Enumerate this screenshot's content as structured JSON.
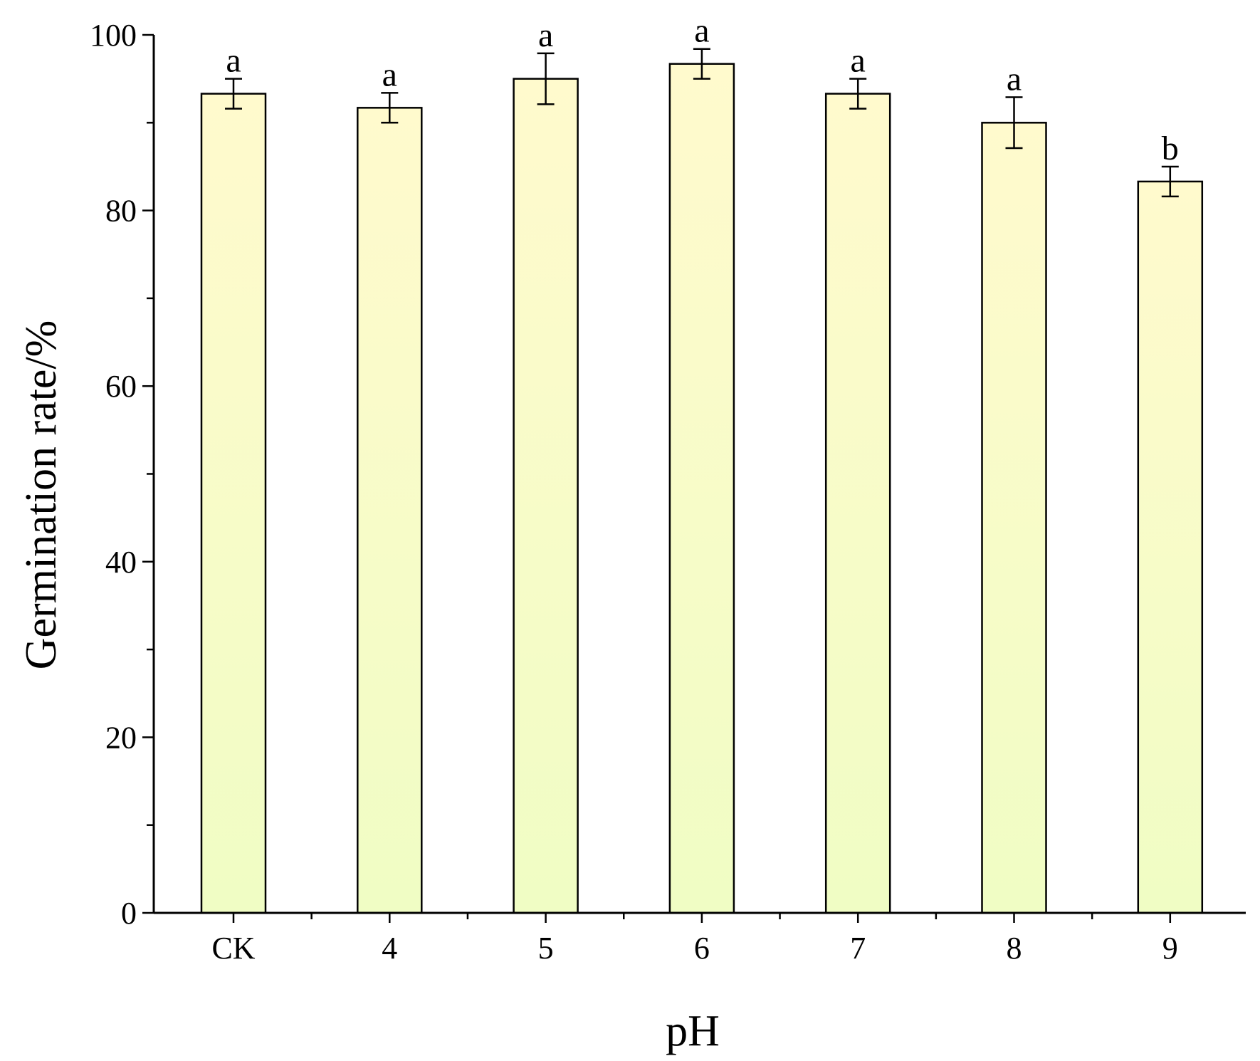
{
  "chart_data": {
    "type": "bar",
    "xlabel": "pH",
    "ylabel": "Germination rate/%",
    "categories": [
      "CK",
      "4",
      "5",
      "6",
      "7",
      "8",
      "9"
    ],
    "values": [
      93.3,
      91.7,
      95.0,
      96.7,
      93.3,
      90.0,
      83.3
    ],
    "errors": [
      1.7,
      1.7,
      2.9,
      1.7,
      1.7,
      2.9,
      1.7
    ],
    "significance": [
      "a",
      "a",
      "a",
      "a",
      "a",
      "a",
      "b"
    ],
    "ylim": [
      0,
      100
    ],
    "yticks": [
      "0",
      "20",
      "40",
      "60",
      "80",
      "100"
    ],
    "grid": false,
    "bar_gradient": [
      "#fffacd",
      "#f0fdc4"
    ]
  }
}
